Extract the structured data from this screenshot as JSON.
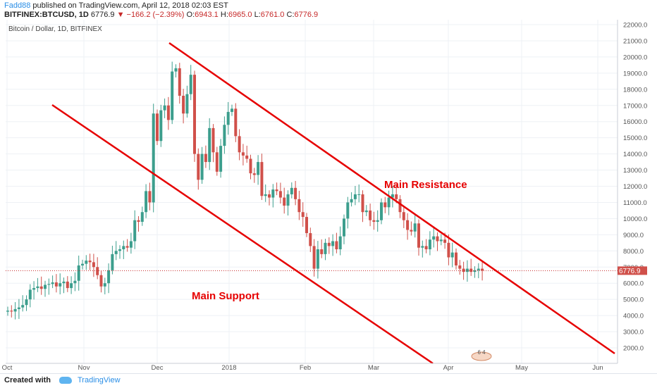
{
  "header": {
    "author": "Fadd88",
    "published": " published on TradingView.com, April 12, 2018 02:03 EST",
    "symbol": "BITFINEX:BTCUSD, 1D",
    "last": "6776.9",
    "change": "−166.2 (−2.39%)",
    "o_label": "O:",
    "open": "6943.1",
    "h_label": "H:",
    "high": "6965.0",
    "l_label": "L:",
    "low": "6761.0",
    "c_label": "C:",
    "close": "6776.9"
  },
  "footer": {
    "created_with": "Created with",
    "brand": "TradingView"
  },
  "colors": {
    "up": "#3c9e8d",
    "down": "#d0504a",
    "trend": "#e60000",
    "grid": "#eef1f5",
    "price_line": "#c62828"
  },
  "chart_data": {
    "type": "candlestick",
    "title": "Bitcoin / Dollar, 1D, BITFINEX",
    "ylim": [
      1000,
      22500
    ],
    "x_ticks": [
      "Oct",
      "Nov",
      "Dec",
      "2018",
      "Feb",
      "Mar",
      "Apr",
      "May",
      "Jun"
    ],
    "y_ticks": [
      "2000.0",
      "3000.0",
      "4000.0",
      "5000.0",
      "6000.0",
      "7000.0",
      "8000.0",
      "9000.0",
      "10000.0",
      "11000.0",
      "12000.0",
      "13000.0",
      "14000.0",
      "15000.0",
      "16000.0",
      "17000.0",
      "18000.0",
      "19000.0",
      "20000.0",
      "21000.0",
      "22000.0"
    ],
    "last_price_label": "6776.9",
    "last_price": 6776.9,
    "closes": [
      4300,
      4250,
      4400,
      4500,
      4650,
      5000,
      5600,
      5700,
      5800,
      5650,
      5900,
      5950,
      6050,
      5800,
      6000,
      6100,
      5700,
      6000,
      6150,
      7100,
      7200,
      7400,
      7300,
      7000,
      6500,
      5800,
      6000,
      6800,
      7800,
      8000,
      8100,
      8300,
      8200,
      8600,
      9900,
      9800,
      10400,
      11700,
      11000,
      16500,
      14800,
      16700,
      17000,
      16100,
      19100,
      19300,
      17600,
      16500,
      17700,
      18900,
      14000,
      12400,
      14000,
      13500,
      15600,
      14100,
      12900,
      14500,
      15800,
      16600,
      16800,
      15100,
      14100,
      13900,
      13700,
      12800,
      12700,
      13500,
      11400,
      11500,
      11300,
      11800,
      11700,
      11300,
      10800,
      11500,
      11900,
      11200,
      10400,
      10100,
      9100,
      8300,
      6900,
      8100,
      7800,
      8500,
      8300,
      8600,
      8100,
      8900,
      10000,
      11000,
      11200,
      11500,
      11500,
      10400,
      10500,
      9900,
      9800,
      9900,
      11000,
      10700,
      11300,
      11500,
      11200,
      10400,
      9900,
      9300,
      9200,
      9700,
      8200,
      8300,
      8100,
      8700,
      8900,
      8600,
      8700,
      8500,
      7600,
      7900,
      7100,
      6900,
      6700,
      6900,
      6700,
      6800,
      6900,
      6780
    ]
  },
  "annotations": {
    "resistance": "Main Resistance",
    "support": "Main Support",
    "tag": "6  4"
  }
}
